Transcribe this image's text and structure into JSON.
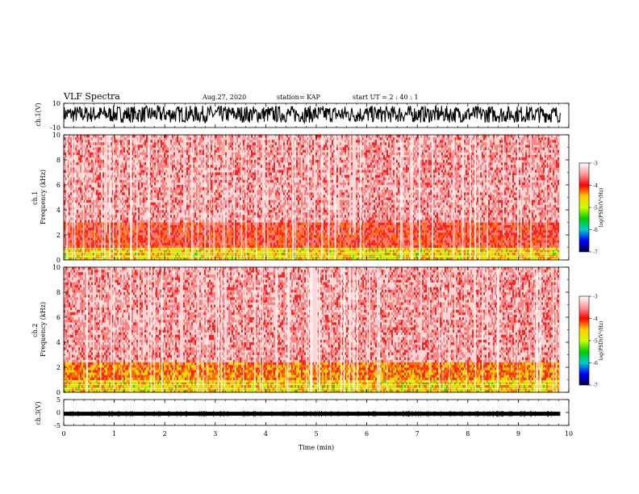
{
  "header": {
    "title": "VLF Spectra",
    "date": "Aug.27, 2020",
    "station": "station= KAP",
    "start": "start  UT =  2 : 40 : 1"
  },
  "colors": {
    "background": "#ffffff",
    "ink": "#000000",
    "colorbar_stops": [
      "#ffffff",
      "#ff9999",
      "#ff0000",
      "#ffcc00",
      "#ccff00",
      "#00cc00",
      "#00cccc",
      "#0000ff",
      "#00003f"
    ]
  },
  "chart_data": [
    {
      "type": "line",
      "panel": "ch1-waveform",
      "ylabel": "ch.1(V)",
      "ylim": [
        -10,
        10
      ],
      "ytick_labels": [
        "10",
        "-10"
      ],
      "x_range_min": [
        0,
        9.8
      ],
      "description_values": "dense noisy waveform spanning roughly -6 to +8 V",
      "envelope": {
        "min": -6,
        "max": 8
      }
    },
    {
      "type": "heatmap",
      "panel": "ch1-spectrogram",
      "ylabel": "ch.1\nFrequency (kHz)",
      "ylabel_lines": [
        "ch.1",
        "Frequency (kHz)"
      ],
      "ylim": [
        0,
        10
      ],
      "ytick_labels": [
        "0",
        "2",
        "4",
        "6",
        "8",
        "10"
      ],
      "colorbar": {
        "label": "log(PSD)(V²/Hz)",
        "range": [
          -7,
          -3
        ],
        "tick_labels": [
          "-3",
          "-4",
          "-5",
          "-6",
          "-7"
        ]
      },
      "bands": [
        {
          "from": 0,
          "to": 1,
          "level": -4.5
        },
        {
          "from": 1,
          "to": 3,
          "level": -3.8
        },
        {
          "from": 3,
          "to": 10,
          "level": -3.4
        }
      ]
    },
    {
      "type": "heatmap",
      "panel": "ch2-spectrogram",
      "ylabel": "ch.2\nFrequency (kHz)",
      "ylabel_lines": [
        "ch.2",
        "Frequency (kHz)"
      ],
      "ylim": [
        0,
        10
      ],
      "ytick_labels": [
        "0",
        "2",
        "4",
        "6",
        "8",
        "10"
      ],
      "colorbar": {
        "label": "log(PSD)(V²/Hz)",
        "range": [
          -7,
          -3
        ],
        "tick_labels": [
          "-3",
          "-4",
          "-5",
          "-6",
          "-7"
        ]
      },
      "bands": [
        {
          "from": 0,
          "to": 1,
          "level": -4.5
        },
        {
          "from": 1,
          "to": 2.5,
          "level": -4.2
        },
        {
          "from": 2.5,
          "to": 10,
          "level": -3.4
        }
      ]
    },
    {
      "type": "line",
      "panel": "ch3-waveform",
      "ylabel": "ch.3(V)",
      "ylim": [
        -5,
        5
      ],
      "ytick_labels": [
        "5",
        "0",
        "-5"
      ],
      "level": -0.5,
      "xlabel": "Time (min)",
      "xlim": [
        0,
        10
      ],
      "xtick_labels": [
        "0",
        "1",
        "2",
        "3",
        "4",
        "5",
        "6",
        "7",
        "8",
        "9",
        "10"
      ]
    }
  ]
}
